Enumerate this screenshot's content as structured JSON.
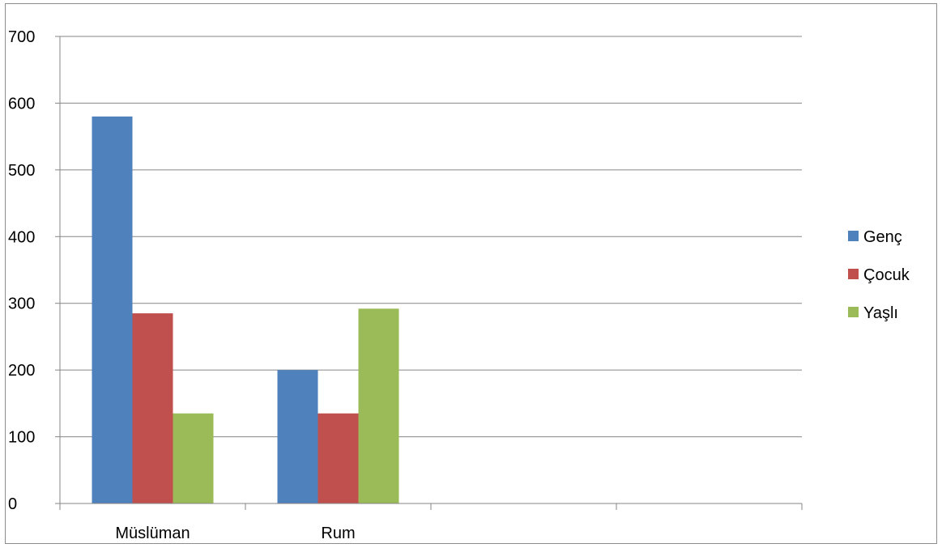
{
  "chart_data": {
    "type": "bar",
    "title": "",
    "xlabel": "",
    "ylabel": "",
    "categories": [
      "Müslüman",
      "Rum",
      "",
      ""
    ],
    "series": [
      {
        "name": "Genç",
        "values": [
          580,
          200,
          null,
          null
        ],
        "color": "#4f81bd"
      },
      {
        "name": "Çocuk",
        "values": [
          285,
          135,
          null,
          null
        ],
        "color": "#c0504d"
      },
      {
        "name": "Yaşlı",
        "values": [
          135,
          292,
          null,
          null
        ],
        "color": "#9bbb59"
      }
    ],
    "ylim": [
      0,
      700
    ],
    "yticks": [
      0,
      100,
      200,
      300,
      400,
      500,
      600,
      700
    ],
    "grid": true,
    "legend_position": "right"
  }
}
